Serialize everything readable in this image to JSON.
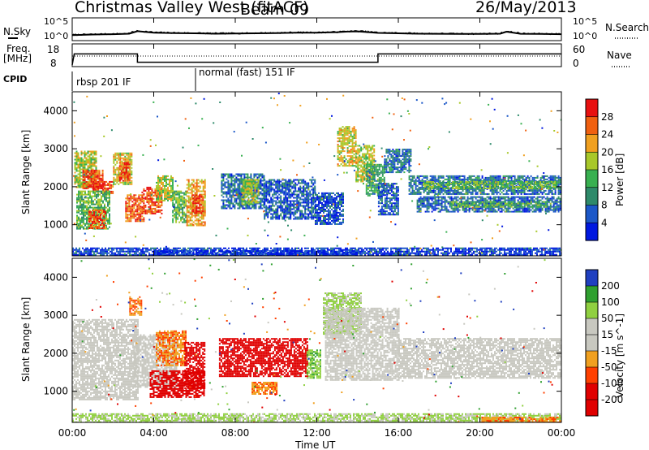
{
  "header": {
    "station": "Christmas Valley West (fitACF)",
    "beam": "Beam 09",
    "date": "26/May/2013"
  },
  "noise_panel": {
    "left_label": "N.Sky",
    "right_label": "N.Search",
    "left_ticks": [
      "10^5",
      "10^0"
    ],
    "right_ticks": [
      "10^5",
      "10^0"
    ]
  },
  "freq_panel": {
    "left_label_1": "Freq.",
    "left_label_2": "[MHz]",
    "right_label": "Nave",
    "left_ticks": [
      "18",
      "8"
    ],
    "right_ticks": [
      "60",
      "0"
    ]
  },
  "cpid": {
    "label": "CPID",
    "segments": [
      "rbsp 201 IF",
      "normal (fast) 151 IF"
    ]
  },
  "time_axis": {
    "label": "Time UT",
    "ticks": [
      "00:00",
      "04:00",
      "08:00",
      "12:00",
      "16:00",
      "20:00",
      "00:00"
    ]
  },
  "range_axis": {
    "label": "Slant Range [km]",
    "ticks": [
      "1000",
      "2000",
      "3000",
      "4000"
    ]
  },
  "colors": {
    "power_scale": [
      "#0018e0",
      "#1c58c8",
      "#2e8a6a",
      "#38b050",
      "#a8c82a",
      "#f0a020",
      "#f06010",
      "#e81010"
    ],
    "velocity_scale": [
      "#e00000",
      "#ff5a00",
      "#f0a020",
      "#c8c8c0",
      "#c8c8c0",
      "#90d040",
      "#30a030",
      "#2040c0"
    ]
  },
  "chart_data": [
    {
      "type": "line",
      "title": "",
      "ylabel": "N.Sky",
      "y2label": "N.Search",
      "yscale": "log",
      "ylim": [
        1,
        100000
      ],
      "x_unit": "hours UT",
      "series": [
        {
          "x": [
            0,
            1,
            2,
            2.8,
            3.2,
            4,
            5,
            6,
            7,
            8,
            9,
            10,
            11,
            12,
            12.5,
            13,
            13.5,
            14,
            15,
            16,
            17,
            18,
            19,
            20,
            21,
            21.3,
            22,
            23,
            24
          ],
          "values": [
            12,
            18,
            22,
            30,
            150,
            60,
            45,
            40,
            30,
            35,
            40,
            45,
            60,
            55,
            70,
            80,
            120,
            140,
            50,
            40,
            30,
            28,
            25,
            25,
            30,
            110,
            28,
            25,
            22
          ]
        }
      ]
    },
    {
      "type": "line",
      "title": "",
      "ylabel": "Freq. [MHz]",
      "y2label": "Nave",
      "ylim": [
        8,
        18
      ],
      "y2lim": [
        0,
        60
      ],
      "x_unit": "hours UT",
      "series": [
        {
          "x": [
            0,
            0.1,
            3.2,
            3.2,
            15.0,
            15.0,
            24
          ],
          "values": [
            8,
            16,
            16,
            10,
            10,
            16,
            16
          ]
        }
      ]
    },
    {
      "type": "heatmap",
      "title": "",
      "xlabel": "",
      "ylabel": "Slant Range [km]",
      "colorbar_label": "Power [dB]",
      "colorbar_ticks": [
        4,
        8,
        12,
        16,
        20,
        24,
        28
      ],
      "clim": [
        0,
        30
      ],
      "xlim": [
        0,
        24
      ],
      "ylim": [
        180,
        4500
      ],
      "regions": [
        {
          "t0": 0.1,
          "t1": 1.2,
          "r0": 2000,
          "r1": 2950,
          "v": 18
        },
        {
          "t0": 0.5,
          "t1": 1.5,
          "r0": 1950,
          "r1": 2450,
          "v": 27
        },
        {
          "t0": 1.0,
          "t1": 2.0,
          "r0": 1850,
          "r1": 2150,
          "v": 28
        },
        {
          "t0": 2.0,
          "t1": 2.9,
          "r0": 2050,
          "r1": 2900,
          "v": 20
        },
        {
          "t0": 2.3,
          "t1": 2.8,
          "r0": 2150,
          "r1": 2650,
          "v": 27
        },
        {
          "t0": 0.2,
          "t1": 1.8,
          "r0": 900,
          "r1": 1900,
          "v": 14
        },
        {
          "t0": 0.8,
          "t1": 1.6,
          "r0": 900,
          "r1": 1400,
          "v": 27
        },
        {
          "t0": 2.6,
          "t1": 3.5,
          "r0": 1100,
          "r1": 1800,
          "v": 26
        },
        {
          "t0": 3.4,
          "t1": 4.4,
          "r0": 1300,
          "r1": 2000,
          "v": 27
        },
        {
          "t0": 4.1,
          "t1": 4.9,
          "r0": 1650,
          "r1": 2300,
          "v": 18
        },
        {
          "t0": 4.9,
          "t1": 5.6,
          "r0": 1050,
          "r1": 1900,
          "v": 14
        },
        {
          "t0": 5.6,
          "t1": 6.5,
          "r0": 1000,
          "r1": 2200,
          "v": 22
        },
        {
          "t0": 5.9,
          "t1": 6.4,
          "r0": 1300,
          "r1": 1800,
          "v": 28
        },
        {
          "t0": 7.3,
          "t1": 9.4,
          "r0": 1450,
          "r1": 2350,
          "v": 8
        },
        {
          "t0": 8.3,
          "t1": 9.1,
          "r0": 1550,
          "r1": 2200,
          "v": 17
        },
        {
          "t0": 9.4,
          "t1": 11.9,
          "r0": 1150,
          "r1": 2200,
          "v": 6
        },
        {
          "t0": 11.9,
          "t1": 13.3,
          "r0": 1000,
          "r1": 1850,
          "v": 5
        },
        {
          "t0": 13.0,
          "t1": 13.9,
          "r0": 2550,
          "r1": 3600,
          "v": 20
        },
        {
          "t0": 13.9,
          "t1": 14.8,
          "r0": 2150,
          "r1": 3100,
          "v": 18
        },
        {
          "t0": 14.4,
          "t1": 15.3,
          "r0": 1750,
          "r1": 2600,
          "v": 12
        },
        {
          "t0": 15.0,
          "t1": 16.0,
          "r0": 1250,
          "r1": 2100,
          "v": 6
        },
        {
          "t0": 15.3,
          "t1": 16.6,
          "r0": 2400,
          "r1": 3000,
          "v": 8
        },
        {
          "t0": 16.5,
          "t1": 24.0,
          "r0": 1800,
          "r1": 2300,
          "v": 8
        },
        {
          "t0": 17.2,
          "t1": 23.8,
          "r0": 1950,
          "r1": 2150,
          "v": 15
        },
        {
          "t0": 16.9,
          "t1": 24.0,
          "r0": 1350,
          "r1": 1750,
          "v": 7
        },
        {
          "t0": 18.5,
          "t1": 23.5,
          "r0": 1480,
          "r1": 1620,
          "v": 14
        },
        {
          "t0": 0.0,
          "t1": 24.0,
          "r0": 200,
          "r1": 400,
          "v": 4
        },
        {
          "t0": 4.0,
          "t1": 14.0,
          "r0": 180,
          "r1": 330,
          "v": 3
        }
      ]
    },
    {
      "type": "heatmap",
      "title": "",
      "xlabel": "Time UT",
      "ylabel": "Slant Range [km]",
      "colorbar_label": "Velocity [m s^-1]",
      "colorbar_ticks": [
        200,
        100,
        50,
        15,
        -15,
        -50,
        -100,
        -200
      ],
      "clim": [
        -250,
        250
      ],
      "xlim": [
        0,
        24
      ],
      "ylim": [
        180,
        4500
      ],
      "regions": [
        {
          "t0": 0.0,
          "t1": 3.2,
          "r0": 800,
          "r1": 2900,
          "v": 0
        },
        {
          "t0": 3.0,
          "t1": 5.1,
          "r0": 1100,
          "r1": 2500,
          "v": 0
        },
        {
          "t0": 4.1,
          "t1": 5.6,
          "r0": 1700,
          "r1": 2600,
          "v": -70
        },
        {
          "t0": 2.8,
          "t1": 3.4,
          "r0": 3000,
          "r1": 3500,
          "v": -70
        },
        {
          "t0": 3.8,
          "t1": 6.5,
          "r0": 850,
          "r1": 1550,
          "v": -240
        },
        {
          "t0": 5.5,
          "t1": 6.5,
          "r0": 1100,
          "r1": 2300,
          "v": -240
        },
        {
          "t0": 7.2,
          "t1": 11.5,
          "r0": 1400,
          "r1": 2400,
          "v": -200
        },
        {
          "t0": 11.5,
          "t1": 12.2,
          "r0": 1350,
          "r1": 2100,
          "v": 60
        },
        {
          "t0": 8.8,
          "t1": 10.0,
          "r0": 950,
          "r1": 1250,
          "v": -70
        },
        {
          "t0": 12.3,
          "t1": 14.2,
          "r0": 2500,
          "r1": 3600,
          "v": 40
        },
        {
          "t0": 12.4,
          "t1": 16.0,
          "r0": 1300,
          "r1": 3200,
          "v": 0
        },
        {
          "t0": 16.0,
          "t1": 24.0,
          "r0": 1350,
          "r1": 2400,
          "v": 0
        },
        {
          "t0": 0.0,
          "t1": 24.0,
          "r0": 200,
          "r1": 420,
          "v": 40
        },
        {
          "t0": 20.0,
          "t1": 24.0,
          "r0": 200,
          "r1": 330,
          "v": -70
        }
      ]
    }
  ]
}
